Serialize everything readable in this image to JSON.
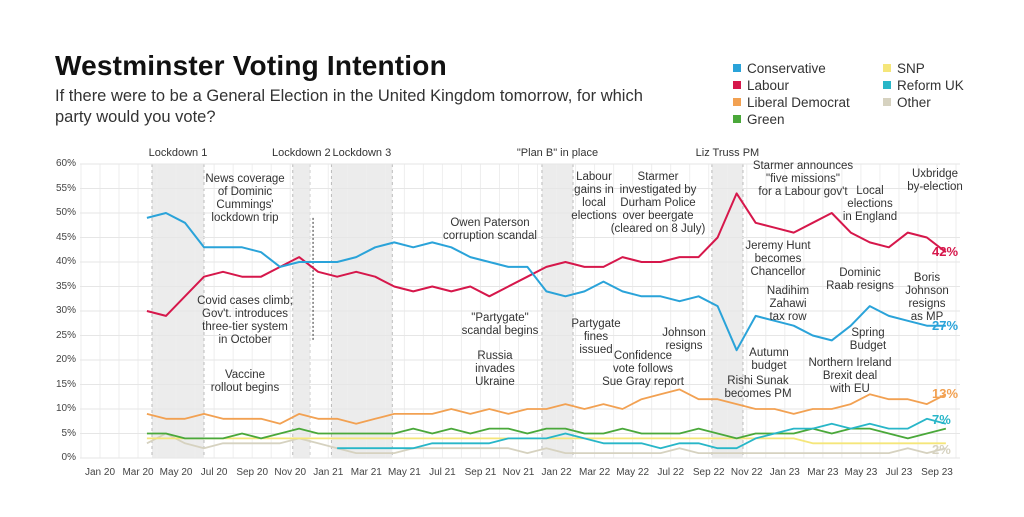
{
  "chart_data": {
    "type": "line",
    "title": "Westminster Voting Intention",
    "subtitle": "If there were to be a General Election in the United Kingdom tomorrow, for which party would you vote?",
    "ylim": [
      0,
      60
    ],
    "y_ticks": [
      "0%",
      "5%",
      "10%",
      "15%",
      "20%",
      "25%",
      "30%",
      "35%",
      "40%",
      "45%",
      "50%",
      "55%",
      "60%"
    ],
    "x_ticks": [
      "Jan 20",
      "Mar 20",
      "May 20",
      "Jul 20",
      "Sep 20",
      "Nov 20",
      "Jan 21",
      "Mar 21",
      "May 21",
      "Jul 21",
      "Sep 21",
      "Nov 21",
      "Jan 22",
      "Mar 22",
      "May 22",
      "Jul 22",
      "Sep 22",
      "Nov 22",
      "Jan 23",
      "Mar 23",
      "May 23",
      "Jul 23",
      "Sep 23"
    ],
    "grid": true,
    "legend_position": "top-right",
    "x": [
      "2020-03",
      "2020-04",
      "2020-05",
      "2020-06",
      "2020-07",
      "2020-08",
      "2020-09",
      "2020-10",
      "2020-11",
      "2020-12",
      "2021-01",
      "2021-02",
      "2021-03",
      "2021-04",
      "2021-05",
      "2021-06",
      "2021-07",
      "2021-08",
      "2021-09",
      "2021-10",
      "2021-11",
      "2021-12",
      "2022-01",
      "2022-02",
      "2022-03",
      "2022-04",
      "2022-05",
      "2022-06",
      "2022-07",
      "2022-08",
      "2022-09",
      "2022-10",
      "2022-11",
      "2022-12",
      "2023-01",
      "2023-02",
      "2023-03",
      "2023-04",
      "2023-05",
      "2023-06",
      "2023-07",
      "2023-08",
      "2023-09"
    ],
    "series": [
      {
        "name": "Conservative",
        "color": "#2aa3d9",
        "end_label": "27%",
        "values": [
          49,
          50,
          48,
          43,
          43,
          43,
          42,
          39,
          40,
          40,
          40,
          41,
          43,
          44,
          43,
          44,
          43,
          41,
          40,
          39,
          39,
          34,
          33,
          34,
          36,
          34,
          33,
          33,
          32,
          33,
          31,
          22,
          29,
          28,
          27,
          25,
          24,
          27,
          31,
          29,
          28,
          27,
          27
        ]
      },
      {
        "name": "Labour",
        "color": "#d6174b",
        "end_label": "42%",
        "values": [
          30,
          29,
          33,
          37,
          38,
          37,
          37,
          39,
          41,
          38,
          37,
          38,
          37,
          35,
          34,
          35,
          34,
          35,
          33,
          35,
          37,
          39,
          40,
          39,
          39,
          41,
          40,
          40,
          41,
          41,
          45,
          54,
          48,
          47,
          46,
          48,
          50,
          46,
          44,
          43,
          46,
          45,
          42
        ]
      },
      {
        "name": "Liberal Democrat",
        "color": "#f2a152",
        "end_label": "13%",
        "values": [
          9,
          8,
          8,
          9,
          8,
          8,
          8,
          7,
          9,
          8,
          8,
          7,
          8,
          9,
          9,
          9,
          10,
          9,
          10,
          9,
          10,
          10,
          11,
          10,
          11,
          10,
          12,
          13,
          14,
          12,
          12,
          11,
          10,
          10,
          9,
          10,
          10,
          11,
          13,
          12,
          12,
          11,
          13
        ]
      },
      {
        "name": "Green",
        "color": "#4aa83a",
        "end_label": "",
        "values": [
          5,
          5,
          4,
          4,
          4,
          5,
          4,
          5,
          6,
          5,
          5,
          5,
          5,
          5,
          6,
          5,
          6,
          5,
          6,
          6,
          5,
          6,
          6,
          5,
          5,
          6,
          5,
          5,
          5,
          6,
          5,
          4,
          5,
          5,
          5,
          6,
          5,
          6,
          6,
          5,
          4,
          5,
          6
        ]
      },
      {
        "name": "SNP",
        "color": "#f5e67a",
        "end_label": "",
        "values": [
          4,
          4,
          4,
          4,
          4,
          4,
          4,
          4,
          4,
          4,
          4,
          4,
          4,
          4,
          4,
          4,
          4,
          4,
          4,
          4,
          4,
          4,
          4,
          4,
          4,
          4,
          4,
          4,
          4,
          4,
          4,
          4,
          4,
          4,
          4,
          3,
          3,
          3,
          3,
          3,
          3,
          3,
          3
        ]
      },
      {
        "name": "Reform UK",
        "color": "#28b6c8",
        "end_label": "7%",
        "values": [
          null,
          null,
          null,
          null,
          null,
          null,
          null,
          null,
          null,
          null,
          2,
          2,
          2,
          2,
          2,
          3,
          3,
          3,
          3,
          4,
          4,
          4,
          5,
          4,
          3,
          3,
          3,
          2,
          3,
          3,
          2,
          2,
          4,
          5,
          6,
          6,
          7,
          6,
          7,
          6,
          6,
          8,
          7
        ]
      },
      {
        "name": "Other",
        "color": "#d6d2c0",
        "end_label": "2%",
        "values": [
          3,
          5,
          3,
          2,
          3,
          3,
          3,
          3,
          4,
          3,
          2,
          1,
          1,
          1,
          2,
          2,
          2,
          2,
          2,
          2,
          1,
          2,
          1,
          1,
          1,
          1,
          1,
          1,
          2,
          1,
          1,
          1,
          1,
          1,
          1,
          1,
          1,
          1,
          1,
          1,
          2,
          1,
          2
        ]
      }
    ],
    "legend_order": [
      "Conservative",
      "SNP",
      "Labour",
      "Reform UK",
      "Liberal Democrat",
      "Other",
      "Green"
    ],
    "shaded_periods": [
      {
        "label": "Lockdown 1",
        "start": "2020-03-23",
        "end": "2020-06-15"
      },
      {
        "label": "Lockdown 2",
        "start": "2020-11-05",
        "end": "2020-12-02"
      },
      {
        "label": "Lockdown 3",
        "start": "2021-01-06",
        "end": "2021-04-12"
      },
      {
        "label": "\"Plan B\" in place",
        "start": "2021-12-08",
        "end": "2022-01-27"
      },
      {
        "label": "Liz Truss PM",
        "start": "2022-09-06",
        "end": "2022-10-25"
      }
    ],
    "annotations": [
      "News coverage\nof Dominic\nCummings'\nlockdown trip",
      "Covid cases climb;\nGov't. introduces\nthree-tier system\nin October",
      "Vaccine\nrollout begins",
      "Owen Paterson\ncorruption scandal",
      "\"Partygate\"\nscandal begins",
      "Russia\ninvades\nUkraine",
      "Partygate\nfines\nissued",
      "Confidence\nvote follows\nSue Gray report",
      "Johnson\nresigns",
      "Labour\ngains in\nlocal\nelections",
      "Starmer\ninvestigated by\nDurham Police\nover beergate\n(cleared on 8 July)",
      "Starmer announces\n\"five missions\"\nfor a Labour gov't",
      "Jeremy Hunt\nbecomes\nChancellor",
      "Local\nelections\nin England",
      "Uxbridge\nby-election",
      "Dominic\nRaab resigns",
      "Boris\nJohnson\nresigns\nas MP",
      "Nadihim\nZahawi\ntax row",
      "Spring\nBudget",
      "Autumn\nbudget",
      "Northern Ireland\nBrexit deal\nwith EU",
      "Rishi Sunak\nbecomes PM"
    ]
  }
}
